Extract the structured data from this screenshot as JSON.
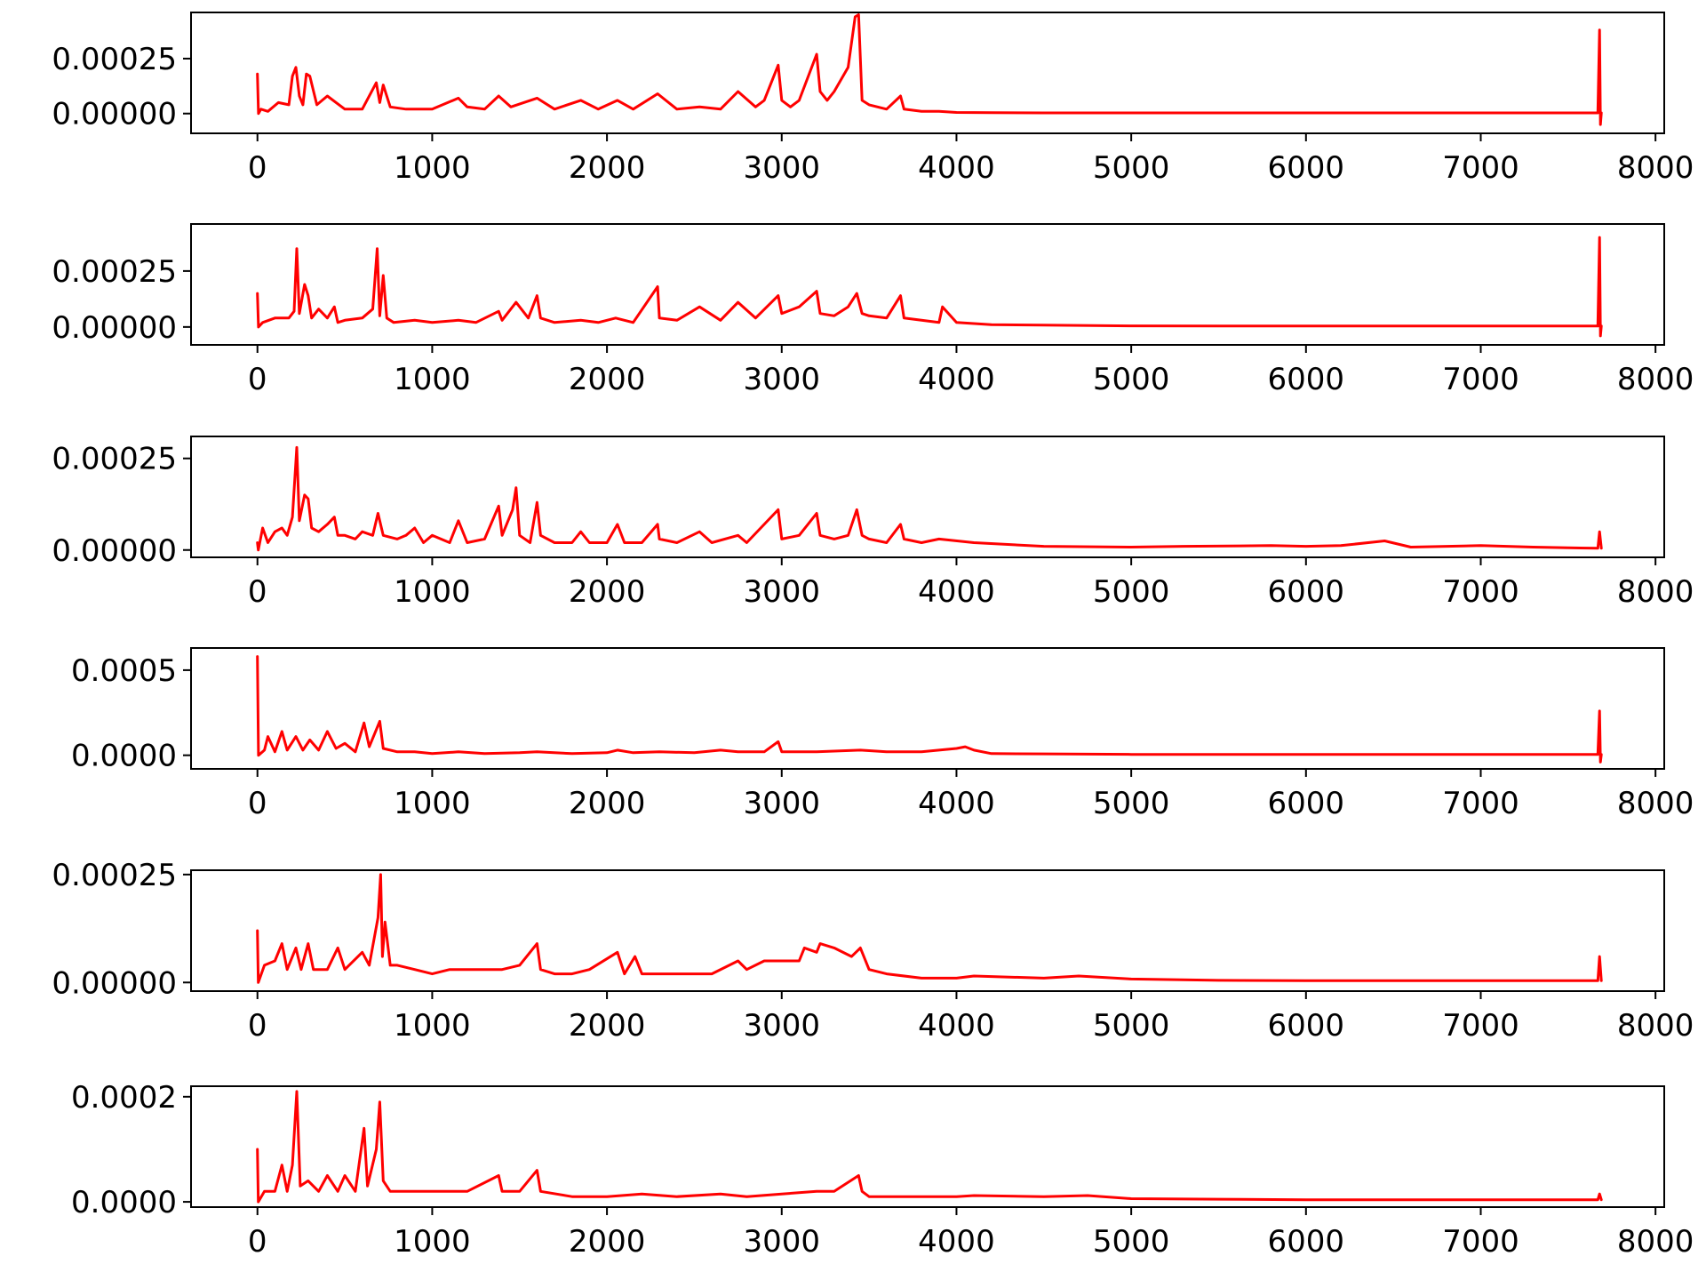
{
  "chart_data": [
    {
      "type": "line",
      "xlim": [
        -380,
        8050
      ],
      "ylim": [
        -9e-05,
        0.00046
      ],
      "xticks": [
        0,
        1000,
        2000,
        3000,
        4000,
        5000,
        6000,
        7000,
        8000
      ],
      "xtick_labels": [
        "0",
        "1000",
        "2000",
        "3000",
        "4000",
        "5000",
        "6000",
        "7000",
        "8000"
      ],
      "yticks": [
        0.0,
        0.00025
      ],
      "ytick_labels": [
        "0.00000",
        "0.00025"
      ],
      "series": [
        {
          "color": "#ff0000",
          "x": [
            0,
            6,
            20,
            60,
            120,
            180,
            200,
            220,
            240,
            260,
            280,
            300,
            340,
            400,
            500,
            600,
            680,
            700,
            720,
            760,
            850,
            1000,
            1150,
            1200,
            1300,
            1380,
            1450,
            1600,
            1700,
            1850,
            1950,
            2060,
            2150,
            2290,
            2400,
            2530,
            2650,
            2750,
            2850,
            2900,
            2980,
            3000,
            3050,
            3100,
            3200,
            3220,
            3260,
            3300,
            3380,
            3420,
            3440,
            3460,
            3500,
            3600,
            3680,
            3700,
            3800,
            3900,
            4000,
            4200,
            4500,
            5000,
            5500,
            6000,
            6500,
            7000,
            7500,
            7670,
            7680,
            7685,
            7690
          ],
          "y": [
            0.00018,
            0.0,
            2e-05,
            1e-05,
            5e-05,
            4e-05,
            0.00017,
            0.00021,
            8e-05,
            4e-05,
            0.00018,
            0.00017,
            4e-05,
            8e-05,
            2e-05,
            2e-05,
            0.00014,
            5e-05,
            0.00013,
            3e-05,
            2e-05,
            2e-05,
            7e-05,
            3e-05,
            2e-05,
            8e-05,
            3e-05,
            7e-05,
            2e-05,
            6e-05,
            2e-05,
            6e-05,
            2e-05,
            9e-05,
            2e-05,
            3e-05,
            2e-05,
            0.0001,
            3e-05,
            6e-05,
            0.00022,
            6e-05,
            3e-05,
            6e-05,
            0.00027,
            0.0001,
            6e-05,
            0.0001,
            0.00021,
            0.00044,
            0.00045,
            6e-05,
            4e-05,
            2e-05,
            8e-05,
            2e-05,
            1e-05,
            1e-05,
            5e-06,
            4e-06,
            3e-06,
            3e-06,
            3e-06,
            3e-06,
            3e-06,
            3e-06,
            3e-06,
            3e-06,
            0.00038,
            -5e-05,
            3e-06
          ]
        }
      ]
    },
    {
      "type": "line",
      "xlim": [
        -380,
        8050
      ],
      "ylim": [
        -8e-05,
        0.00046
      ],
      "xticks": [
        0,
        1000,
        2000,
        3000,
        4000,
        5000,
        6000,
        7000,
        8000
      ],
      "xtick_labels": [
        "0",
        "1000",
        "2000",
        "3000",
        "4000",
        "5000",
        "6000",
        "7000",
        "8000"
      ],
      "yticks": [
        0.0,
        0.00025
      ],
      "ytick_labels": [
        "0.00000",
        "0.00025"
      ],
      "series": [
        {
          "color": "#ff0000",
          "x": [
            0,
            6,
            30,
            100,
            180,
            210,
            225,
            240,
            270,
            290,
            310,
            350,
            400,
            440,
            460,
            500,
            600,
            660,
            685,
            700,
            720,
            740,
            780,
            900,
            1000,
            1150,
            1250,
            1380,
            1400,
            1480,
            1550,
            1600,
            1620,
            1700,
            1850,
            1950,
            2050,
            2150,
            2290,
            2300,
            2400,
            2530,
            2650,
            2750,
            2850,
            2980,
            3000,
            3100,
            3200,
            3220,
            3300,
            3380,
            3430,
            3460,
            3500,
            3600,
            3680,
            3700,
            3800,
            3900,
            3920,
            4000,
            4200,
            4500,
            5000,
            5500,
            6000,
            6500,
            7000,
            7500,
            7670,
            7680,
            7685,
            7690
          ],
          "y": [
            0.00015,
            0.0,
            2e-05,
            4e-05,
            4e-05,
            7e-05,
            0.00035,
            6e-05,
            0.00019,
            0.00014,
            4e-05,
            8e-05,
            4e-05,
            9e-05,
            2e-05,
            3e-05,
            4e-05,
            8e-05,
            0.00035,
            5e-05,
            0.00023,
            4e-05,
            2e-05,
            3e-05,
            2e-05,
            3e-05,
            2e-05,
            7e-05,
            3e-05,
            0.00011,
            4e-05,
            0.00014,
            4e-05,
            2e-05,
            3e-05,
            2e-05,
            4e-05,
            2e-05,
            0.00018,
            4e-05,
            3e-05,
            9e-05,
            3e-05,
            0.00011,
            4e-05,
            0.00014,
            6e-05,
            9e-05,
            0.00016,
            6e-05,
            5e-05,
            9e-05,
            0.00015,
            6e-05,
            5e-05,
            4e-05,
            0.00014,
            4e-05,
            3e-05,
            2e-05,
            9e-05,
            2e-05,
            1e-05,
            8e-06,
            5e-06,
            4e-06,
            4e-06,
            4e-06,
            4e-06,
            4e-06,
            4e-06,
            0.0004,
            -4e-05,
            4e-06
          ]
        }
      ]
    },
    {
      "type": "line",
      "xlim": [
        -380,
        8050
      ],
      "ylim": [
        -2e-05,
        0.00031
      ],
      "xticks": [
        0,
        1000,
        2000,
        3000,
        4000,
        5000,
        6000,
        7000,
        8000
      ],
      "xtick_labels": [
        "0",
        "1000",
        "2000",
        "3000",
        "4000",
        "5000",
        "6000",
        "7000",
        "8000"
      ],
      "yticks": [
        0.0,
        0.00025
      ],
      "ytick_labels": [
        "0.00000",
        "0.00025"
      ],
      "series": [
        {
          "color": "#ff0000",
          "x": [
            0,
            5,
            30,
            60,
            100,
            140,
            170,
            200,
            225,
            240,
            270,
            290,
            310,
            350,
            400,
            440,
            460,
            500,
            560,
            600,
            660,
            690,
            720,
            800,
            850,
            900,
            950,
            1000,
            1100,
            1150,
            1200,
            1300,
            1380,
            1400,
            1460,
            1480,
            1500,
            1560,
            1600,
            1620,
            1700,
            1800,
            1850,
            1900,
            2000,
            2060,
            2100,
            2200,
            2290,
            2300,
            2400,
            2530,
            2600,
            2750,
            2800,
            2980,
            3000,
            3100,
            3200,
            3220,
            3300,
            3380,
            3430,
            3460,
            3500,
            3600,
            3680,
            3700,
            3800,
            3900,
            4100,
            4500,
            5000,
            5300,
            5800,
            6000,
            6200,
            6450,
            6600,
            7000,
            7300,
            7500,
            7670,
            7680,
            7690
          ],
          "y": [
            2e-05,
            0.0,
            6e-05,
            2e-05,
            5e-05,
            6e-05,
            4e-05,
            9e-05,
            0.00028,
            8e-05,
            0.00015,
            0.00014,
            6e-05,
            5e-05,
            7e-05,
            9e-05,
            4e-05,
            4e-05,
            3e-05,
            5e-05,
            4e-05,
            0.0001,
            4e-05,
            3e-05,
            4e-05,
            6e-05,
            2e-05,
            4e-05,
            2e-05,
            8e-05,
            2e-05,
            3e-05,
            0.00012,
            4e-05,
            0.00011,
            0.00017,
            4e-05,
            2e-05,
            0.00013,
            4e-05,
            2e-05,
            2e-05,
            5e-05,
            2e-05,
            2e-05,
            7e-05,
            2e-05,
            2e-05,
            7e-05,
            3e-05,
            2e-05,
            5e-05,
            2e-05,
            4e-05,
            2e-05,
            0.00011,
            3e-05,
            4e-05,
            0.0001,
            4e-05,
            3e-05,
            4e-05,
            0.00011,
            4e-05,
            3e-05,
            2e-05,
            7e-05,
            3e-05,
            2e-05,
            3e-05,
            2e-05,
            1e-05,
            8e-06,
            1e-05,
            1.2e-05,
            1e-05,
            1.2e-05,
            2.5e-05,
            8e-06,
            1.2e-05,
            8e-06,
            6e-06,
            5e-06,
            5e-05,
            5e-06
          ]
        }
      ]
    },
    {
      "type": "line",
      "xlim": [
        -380,
        8050
      ],
      "ylim": [
        -8e-05,
        0.00063
      ],
      "xticks": [
        0,
        1000,
        2000,
        3000,
        4000,
        5000,
        6000,
        7000,
        8000
      ],
      "xtick_labels": [
        "0",
        "1000",
        "2000",
        "3000",
        "4000",
        "5000",
        "6000",
        "7000",
        "8000"
      ],
      "yticks": [
        0.0,
        0.0005
      ],
      "ytick_labels": [
        "0.0000",
        "0.0005"
      ],
      "series": [
        {
          "color": "#ff0000",
          "x": [
            0,
            6,
            40,
            60,
            100,
            140,
            170,
            220,
            260,
            300,
            350,
            400,
            450,
            500,
            560,
            610,
            640,
            700,
            720,
            800,
            900,
            1000,
            1150,
            1300,
            1500,
            1600,
            1800,
            2000,
            2060,
            2150,
            2300,
            2500,
            2650,
            2750,
            2900,
            2980,
            3000,
            3200,
            3450,
            3600,
            3800,
            4000,
            4050,
            4100,
            4200,
            4500,
            5000,
            5500,
            6000,
            6500,
            7000,
            7500,
            7670,
            7680,
            7685,
            7690
          ],
          "y": [
            0.00058,
            0.0,
            3e-05,
            0.00011,
            2e-05,
            0.00014,
            3e-05,
            0.00011,
            3e-05,
            9e-05,
            3e-05,
            0.00014,
            4e-05,
            7e-05,
            2e-05,
            0.00019,
            5e-05,
            0.0002,
            4e-05,
            2e-05,
            2e-05,
            1e-05,
            2e-05,
            1e-05,
            1.5e-05,
            2e-05,
            1e-05,
            1.5e-05,
            3e-05,
            1.5e-05,
            2e-05,
            1.5e-05,
            3e-05,
            2e-05,
            2e-05,
            8e-05,
            2e-05,
            2e-05,
            3e-05,
            2e-05,
            2e-05,
            4e-05,
            5e-05,
            3e-05,
            1e-05,
            8e-06,
            5e-06,
            5e-06,
            5e-06,
            5e-06,
            5e-06,
            5e-06,
            5e-06,
            0.00026,
            -4e-05,
            5e-06
          ]
        }
      ]
    },
    {
      "type": "line",
      "xlim": [
        -380,
        8050
      ],
      "ylim": [
        -2e-05,
        0.00026
      ],
      "xticks": [
        0,
        1000,
        2000,
        3000,
        4000,
        5000,
        6000,
        7000,
        8000
      ],
      "xtick_labels": [
        "0",
        "1000",
        "2000",
        "3000",
        "4000",
        "5000",
        "6000",
        "7000",
        "8000"
      ],
      "yticks": [
        0.0,
        0.00025
      ],
      "ytick_labels": [
        "0.00000",
        "0.00025"
      ],
      "series": [
        {
          "color": "#ff0000",
          "x": [
            0,
            5,
            40,
            100,
            140,
            170,
            220,
            250,
            290,
            320,
            400,
            460,
            500,
            600,
            640,
            690,
            705,
            715,
            730,
            760,
            800,
            900,
            1000,
            1100,
            1200,
            1300,
            1400,
            1500,
            1600,
            1620,
            1700,
            1800,
            1900,
            2060,
            2100,
            2160,
            2200,
            2300,
            2400,
            2600,
            2750,
            2800,
            2900,
            3000,
            3100,
            3130,
            3200,
            3220,
            3300,
            3400,
            3450,
            3500,
            3600,
            3800,
            4000,
            4100,
            4500,
            4700,
            5000,
            5500,
            6000,
            6500,
            7000,
            7500,
            7670,
            7680,
            7690
          ],
          "y": [
            0.00012,
            0.0,
            4e-05,
            5e-05,
            9e-05,
            3e-05,
            8e-05,
            3e-05,
            9e-05,
            3e-05,
            3e-05,
            8e-05,
            3e-05,
            7e-05,
            4e-05,
            0.00015,
            0.00025,
            6e-05,
            0.00014,
            4e-05,
            4e-05,
            3e-05,
            2e-05,
            3e-05,
            3e-05,
            3e-05,
            3e-05,
            4e-05,
            9e-05,
            3e-05,
            2e-05,
            2e-05,
            3e-05,
            7e-05,
            2e-05,
            6e-05,
            2e-05,
            2e-05,
            2e-05,
            2e-05,
            5e-05,
            3e-05,
            5e-05,
            5e-05,
            5e-05,
            8e-05,
            7e-05,
            9e-05,
            8e-05,
            6e-05,
            8e-05,
            3e-05,
            2e-05,
            1e-05,
            1e-05,
            1.5e-05,
            1e-05,
            1.5e-05,
            8e-06,
            5e-06,
            4e-06,
            4e-06,
            4e-06,
            4e-06,
            4e-06,
            6e-05,
            4e-06
          ]
        }
      ]
    },
    {
      "type": "line",
      "xlim": [
        -380,
        8050
      ],
      "ylim": [
        -1e-05,
        0.00022
      ],
      "xticks": [
        0,
        1000,
        2000,
        3000,
        4000,
        5000,
        6000,
        7000,
        8000
      ],
      "xtick_labels": [
        "0",
        "1000",
        "2000",
        "3000",
        "4000",
        "5000",
        "6000",
        "7000",
        "8000"
      ],
      "yticks": [
        0.0,
        0.0002
      ],
      "ytick_labels": [
        "0.0000",
        "0.0002"
      ],
      "series": [
        {
          "color": "#ff0000",
          "x": [
            0,
            5,
            40,
            100,
            140,
            170,
            200,
            225,
            245,
            290,
            350,
            400,
            460,
            500,
            560,
            610,
            630,
            680,
            700,
            720,
            760,
            850,
            1000,
            1150,
            1200,
            1380,
            1400,
            1500,
            1600,
            1620,
            1800,
            2000,
            2200,
            2400,
            2650,
            2800,
            3000,
            3200,
            3300,
            3440,
            3460,
            3500,
            3700,
            4000,
            4100,
            4500,
            4750,
            5000,
            5500,
            6000,
            6500,
            7000,
            7500,
            7670,
            7680,
            7690
          ],
          "y": [
            0.0001,
            0.0,
            2e-05,
            2e-05,
            7e-05,
            2e-05,
            7e-05,
            0.00021,
            3e-05,
            4e-05,
            2e-05,
            5e-05,
            2e-05,
            5e-05,
            2e-05,
            0.00014,
            3e-05,
            0.0001,
            0.00019,
            4e-05,
            2e-05,
            2e-05,
            2e-05,
            2e-05,
            2e-05,
            5e-05,
            2e-05,
            2e-05,
            6e-05,
            2e-05,
            1e-05,
            1e-05,
            1.5e-05,
            1e-05,
            1.5e-05,
            1e-05,
            1.5e-05,
            2e-05,
            2e-05,
            5e-05,
            2e-05,
            1e-05,
            1e-05,
            1e-05,
            1.2e-05,
            1e-05,
            1.2e-05,
            6e-06,
            5e-06,
            4e-06,
            4e-06,
            4e-06,
            4e-06,
            4e-06,
            1.5e-05,
            4e-06
          ]
        }
      ]
    }
  ]
}
